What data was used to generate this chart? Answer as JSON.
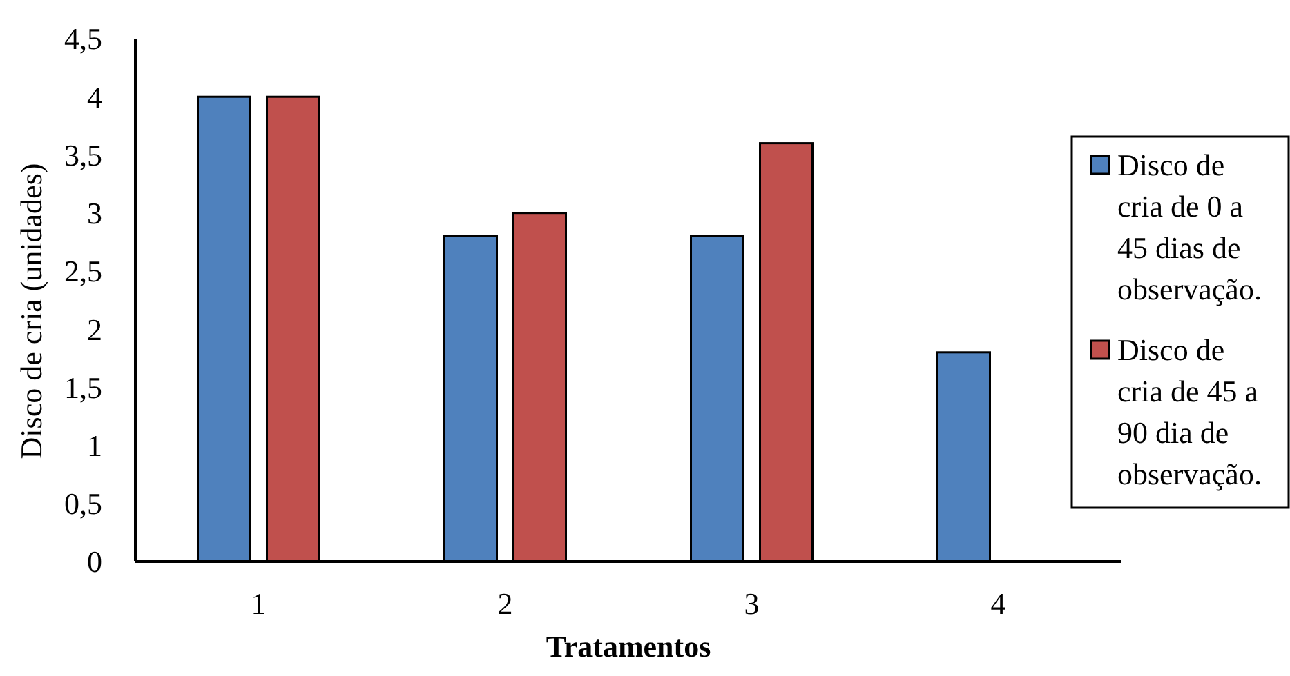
{
  "chart_data": {
    "type": "bar",
    "xlabel": "Tratamentos",
    "ylabel": "Disco de cria (unidades)",
    "categories": [
      "1",
      "2",
      "3",
      "4"
    ],
    "series": [
      {
        "name": "Disco de cria de 0 a 45 dias de observação.",
        "color": "#4f81bd",
        "values": [
          4,
          2.8,
          2.8,
          1.8
        ]
      },
      {
        "name": "Disco de cria de 45 a 90 dia de observação.",
        "color": "#c0504d",
        "values": [
          4,
          3,
          3.6,
          null
        ]
      }
    ],
    "ylim": [
      0,
      4.5
    ],
    "yticks": [
      0,
      {
        "value": 0.5,
        "label": "0,5"
      },
      1,
      {
        "value": 1.5,
        "label": "1,5"
      },
      2,
      {
        "value": 2.5,
        "label": "2,5"
      },
      3,
      {
        "value": 3.5,
        "label": "3,5"
      },
      4,
      {
        "value": 4.5,
        "label": "4,5"
      }
    ],
    "grid": false,
    "legend": "right"
  }
}
